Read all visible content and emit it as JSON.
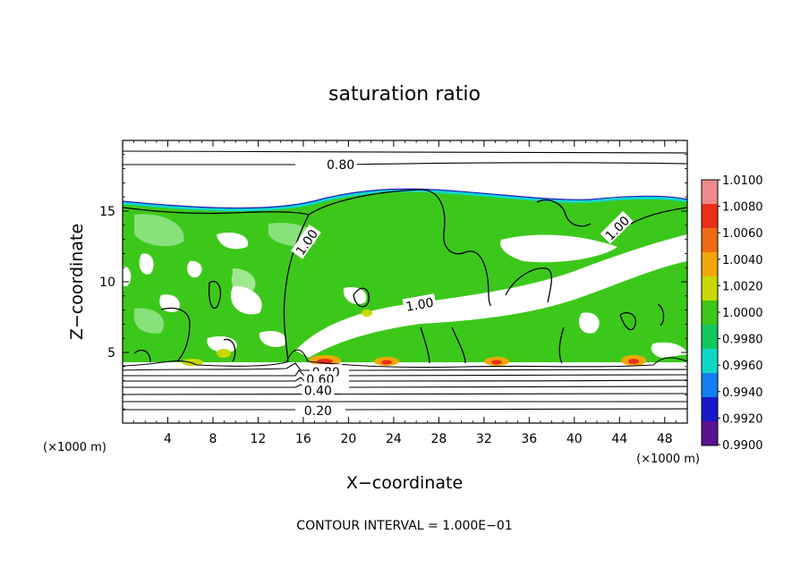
{
  "chart_data": {
    "type": "heatmap",
    "title": "saturation ratio",
    "xlabel": "X−coordinate",
    "ylabel": "Z−coordinate",
    "x_unit_left": "(×1000 m)",
    "x_unit_right": "(×1000 m)",
    "xlim": [
      0,
      50
    ],
    "ylim": [
      0,
      20
    ],
    "x_ticks": [
      4,
      8,
      12,
      16,
      20,
      24,
      28,
      32,
      36,
      40,
      44,
      48
    ],
    "x_tick_labels": [
      "4",
      "8",
      "12",
      "16",
      "20",
      "24",
      "28",
      "32",
      "36",
      "40",
      "44",
      "48"
    ],
    "y_ticks": [
      5,
      10,
      15
    ],
    "y_tick_labels": [
      "5",
      "10",
      "15"
    ],
    "colorbar": {
      "levels": [
        1.01,
        1.008,
        1.006,
        1.004,
        1.002,
        1.0,
        0.998,
        0.996,
        0.994,
        0.992,
        0.99
      ],
      "labels": [
        "1.0100",
        "1.0080",
        "1.0060",
        "1.0040",
        "1.0020",
        "1.0000",
        "0.9980",
        "0.9960",
        "0.9940",
        "0.9920",
        "0.9900"
      ],
      "colors": [
        "#f08a8a",
        "#e83018",
        "#f06a10",
        "#f3a608",
        "#c8d800",
        "#3cc818",
        "#12c860",
        "#10d8c8",
        "#1080f0",
        "#1818c8",
        "#5a1090"
      ]
    },
    "contour_labels": [
      {
        "text": "0.80",
        "x": 19.3,
        "y": 18.3,
        "rotate": 0
      },
      {
        "text": "1.00",
        "x": 16.3,
        "y": 12.8,
        "rotate": -55
      },
      {
        "text": "1.00",
        "x": 26.3,
        "y": 8.4,
        "rotate": -10
      },
      {
        "text": "1.00",
        "x": 43.8,
        "y": 13.8,
        "rotate": -45
      },
      {
        "text": "0.80",
        "x": 18.0,
        "y": 3.6,
        "rotate": 0
      },
      {
        "text": "0.60",
        "x": 17.5,
        "y": 3.1,
        "rotate": 0
      },
      {
        "text": "0.40",
        "x": 17.3,
        "y": 2.3,
        "rotate": 0
      },
      {
        "text": "0.20",
        "x": 17.3,
        "y": 0.9,
        "rotate": 0
      }
    ],
    "footer": "CONTOUR INTERVAL = 1.000E−01",
    "grid": false,
    "legend": "colorbar-right"
  }
}
